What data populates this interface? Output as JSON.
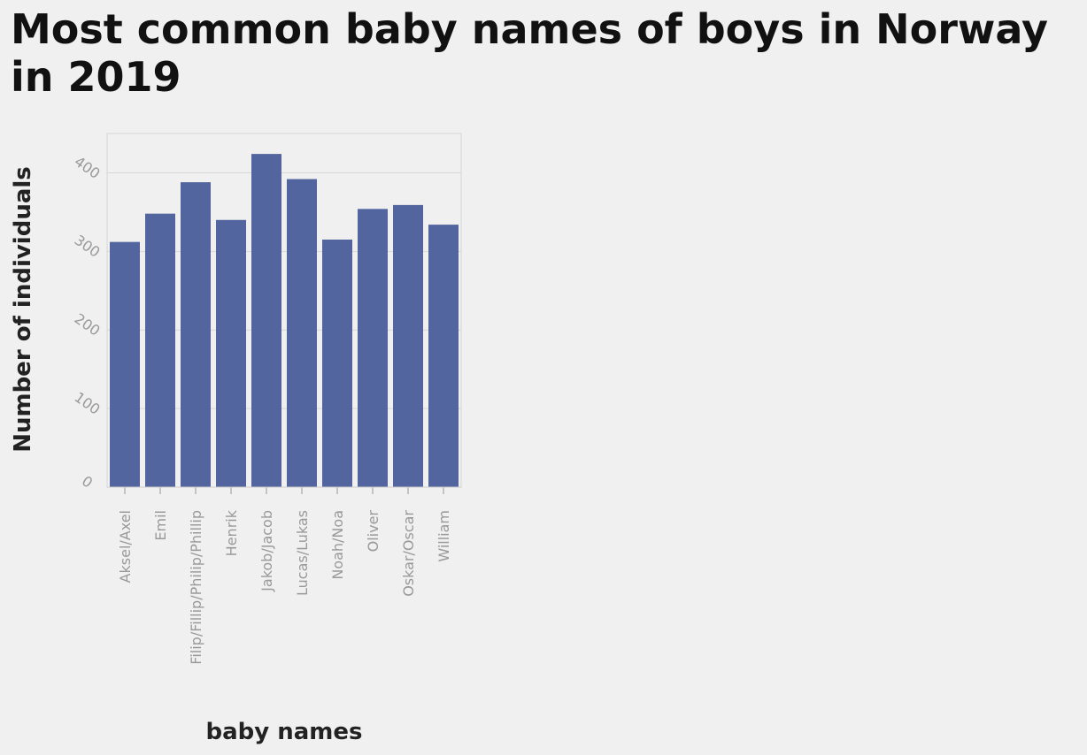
{
  "chart_data": {
    "type": "bar",
    "title": "Most common baby names of boys in Norway in 2019",
    "xlabel": "baby names",
    "ylabel": "Number of individuals",
    "categories": [
      "Aksel/Axel",
      "Emil",
      "Filip/Fillip/Philip/Phillip",
      "Henrik",
      "Jakob/Jacob",
      "Lucas/Lukas",
      "Noah/Noa",
      "Oliver",
      "Oskar/Oscar",
      "William"
    ],
    "values": [
      312,
      348,
      388,
      340,
      424,
      392,
      315,
      354,
      359,
      334
    ],
    "ylim": [
      0,
      450
    ],
    "yticks": [
      "0",
      "100",
      "200",
      "300",
      "400"
    ],
    "grid": true,
    "legend": "none",
    "bar_color": "#52659e"
  }
}
